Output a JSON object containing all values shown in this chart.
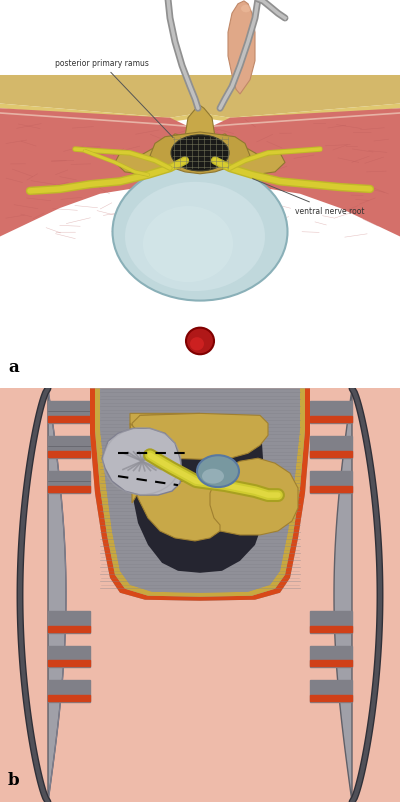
{
  "fig_width": 4.0,
  "fig_height": 8.03,
  "dpi": 100,
  "bg_color": "#ffffff",
  "label_a": "a",
  "label_b": "b",
  "text_posterior": "posterior primary ramus",
  "text_ventral": "ventral nerve root",
  "split": 0.515,
  "skin_pink": "#e8a88a",
  "skin_light": "#f0c8b0",
  "fat_yellow": "#d4b86a",
  "muscle_pink": "#d4706a",
  "muscle_dark": "#c05858",
  "bone_tan": "#c8a848",
  "bone_dark": "#a88838",
  "dura_blue": "#b8d8dc",
  "nerve_yellow": "#c8c030",
  "nerve_bright": "#d4d020",
  "blood_red": "#aa1818",
  "instrument_gray": "#808080",
  "instrument_light": "#b0b0b0",
  "finger_pink": "#e0a888",
  "retractor_gray": "#909098",
  "retractor_dark": "#606068",
  "orange_red": "#d04820",
  "dark_cavity": "#303038",
  "gray_muscle": "#909098"
}
